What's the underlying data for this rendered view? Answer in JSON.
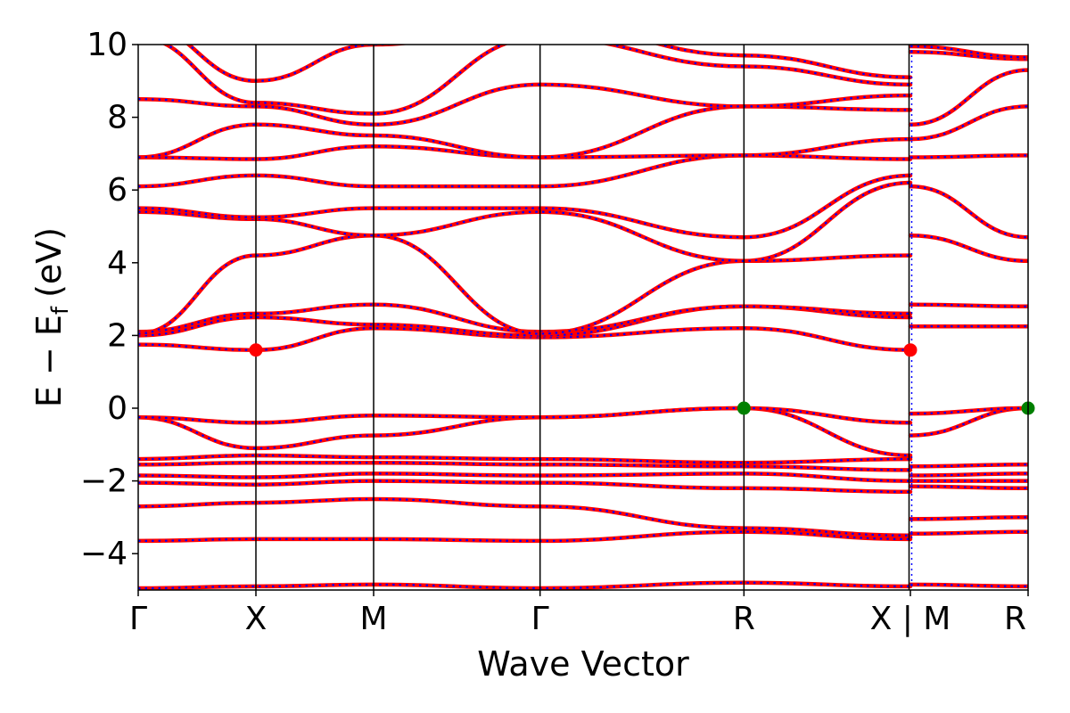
{
  "chart_data": {
    "type": "line",
    "title": "",
    "xlabel": "Wave Vector",
    "ylabel_main": "E − E",
    "ylabel_sub": "f",
    "ylabel_unit": "(eV)",
    "ylim": [
      -5,
      10
    ],
    "yticks": [
      "10",
      "8",
      "6",
      "4",
      "2",
      "0",
      "−2",
      "−4"
    ],
    "ytick_values": [
      10,
      8,
      6,
      4,
      2,
      0,
      -2,
      -4
    ],
    "segments": [
      {
        "name": "Γ-X-M-Γ-R-X",
        "kpoints": [
          "Γ",
          "X",
          "M",
          "Γ",
          "R",
          "X"
        ],
        "kdist": [
          0,
          1,
          2,
          3.414,
          5.146,
          6.56
        ]
      },
      {
        "name": "M-R",
        "kpoints": [
          "M",
          "R"
        ],
        "kdist": [
          6.56,
          7.56
        ]
      }
    ],
    "xtick_labels": [
      "Γ",
      "X",
      "M",
      "Γ",
      "R",
      "X | M",
      "R"
    ],
    "xtick_values": [
      0,
      1,
      2,
      3.414,
      5.146,
      6.56,
      7.56
    ],
    "series_styles": [
      {
        "style": "solid",
        "color": "#ff0000"
      },
      {
        "style": "dotted",
        "color": "#0000ff"
      }
    ],
    "bands_A": [
      [
        -4.95,
        -4.9,
        -4.85,
        -4.95,
        -4.8,
        -4.9
      ],
      [
        -3.65,
        -3.6,
        -3.6,
        -3.65,
        -3.4,
        -3.6
      ],
      [
        -2.7,
        -2.6,
        -2.5,
        -2.7,
        -3.3,
        -3.5
      ],
      [
        -2.05,
        -2.1,
        -2.0,
        -2.05,
        -2.2,
        -2.3
      ],
      [
        -1.85,
        -1.9,
        -1.8,
        -1.85,
        -1.8,
        -2.0
      ],
      [
        -1.55,
        -1.5,
        -1.5,
        -1.55,
        -1.6,
        -1.7
      ],
      [
        -1.4,
        -1.3,
        -1.35,
        -1.4,
        -1.5,
        -1.4
      ],
      [
        -0.25,
        -1.1,
        -0.75,
        -0.25,
        0.0,
        -1.3
      ],
      [
        -0.25,
        -0.4,
        -0.2,
        -0.25,
        0.0,
        -0.4
      ],
      [
        1.75,
        1.6,
        2.2,
        1.95,
        2.2,
        1.6
      ],
      [
        2.0,
        2.5,
        2.3,
        2.0,
        2.8,
        2.5
      ],
      [
        2.1,
        2.6,
        2.85,
        2.1,
        2.8,
        2.6
      ],
      [
        2.05,
        4.2,
        4.75,
        2.05,
        4.05,
        4.2
      ],
      [
        5.4,
        5.2,
        4.75,
        5.4,
        4.05,
        6.2
      ],
      [
        5.5,
        5.25,
        5.5,
        5.5,
        4.7,
        6.4
      ],
      [
        6.1,
        6.4,
        6.1,
        6.1,
        6.95,
        6.85
      ],
      [
        6.9,
        6.85,
        7.2,
        6.9,
        6.95,
        7.4
      ],
      [
        6.9,
        7.8,
        7.5,
        6.9,
        8.3,
        8.2
      ],
      [
        8.5,
        8.3,
        7.8,
        8.9,
        8.3,
        8.6
      ],
      [
        10.2,
        8.4,
        8.1,
        10.2,
        9.4,
        8.9
      ],
      [
        10.6,
        9.0,
        10.0,
        10.6,
        9.7,
        9.1
      ]
    ],
    "bands_B": [
      [
        -4.85,
        -4.9
      ],
      [
        -3.45,
        -3.4
      ],
      [
        -3.05,
        -3.0
      ],
      [
        -2.15,
        -2.2
      ],
      [
        -2.0,
        -2.0
      ],
      [
        -1.85,
        -1.8
      ],
      [
        -1.6,
        -1.55
      ],
      [
        -0.75,
        0.0
      ],
      [
        -0.15,
        0.0
      ],
      [
        2.25,
        2.25
      ],
      [
        2.85,
        2.8
      ],
      [
        6.1,
        4.7
      ],
      [
        4.75,
        4.05
      ],
      [
        6.9,
        6.95
      ],
      [
        7.4,
        8.3
      ],
      [
        7.8,
        9.3
      ],
      [
        9.8,
        9.6
      ],
      [
        9.95,
        9.65
      ]
    ],
    "markers": [
      {
        "name": "cbm",
        "x": 1.0,
        "y": 1.6,
        "color": "#ff0000"
      },
      {
        "name": "cbm",
        "x": 6.56,
        "y": 1.6,
        "color": "#ff0000"
      },
      {
        "name": "vbm",
        "x": 5.146,
        "y": 0.0,
        "color": "#008000"
      },
      {
        "name": "vbm",
        "x": 7.56,
        "y": 0.0,
        "color": "#008000"
      }
    ],
    "vlines_at": [
      1,
      2,
      3.414,
      5.146
    ],
    "break_at": 6.56,
    "grid": false
  }
}
